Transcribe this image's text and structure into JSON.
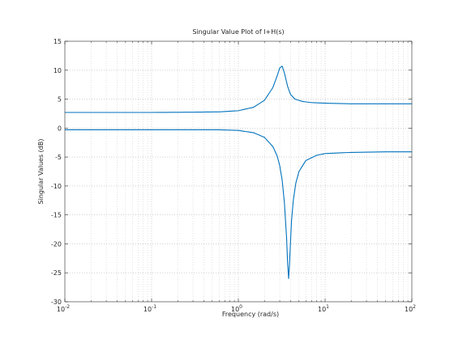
{
  "chart_data": {
    "type": "line",
    "title": "Singular Value Plot of I+H(s)",
    "xlabel": "Frequency (rad/s)",
    "ylabel": "Singular Values (dB)",
    "xscale": "log",
    "xlim": [
      0.01,
      100
    ],
    "ylim": [
      -30,
      15
    ],
    "grid": "major and minor (log x), dotted",
    "x_tick_labels": [
      {
        "base": "10",
        "exp": "-2",
        "value": 0.01
      },
      {
        "base": "10",
        "exp": "-1",
        "value": 0.1
      },
      {
        "base": "10",
        "exp": "0",
        "value": 1
      },
      {
        "base": "10",
        "exp": "1",
        "value": 10
      },
      {
        "base": "10",
        "exp": "2",
        "value": 100
      }
    ],
    "y_tick_labels": [
      "15",
      "10",
      "5",
      "0",
      "-5",
      "-10",
      "-15",
      "-20",
      "-25",
      "-30"
    ],
    "y_tick_values": [
      15,
      10,
      5,
      0,
      -5,
      -10,
      -15,
      -20,
      -25,
      -30
    ],
    "line_color": "#0072BD",
    "series": [
      {
        "x": [
          0.01,
          0.1,
          0.3,
          0.6,
          1.0,
          1.5,
          2.0,
          2.5,
          2.8,
          3.0,
          3.2,
          3.4,
          3.7,
          4.0,
          4.5,
          5.5,
          7.0,
          10,
          20,
          50,
          100
        ],
        "values": [
          2.7,
          2.7,
          2.75,
          2.8,
          3.0,
          3.6,
          4.8,
          7.0,
          9.0,
          10.4,
          10.7,
          9.5,
          7.2,
          5.8,
          5.0,
          4.6,
          4.4,
          4.3,
          4.2,
          4.2,
          4.2
        ]
      },
      {
        "x": [
          0.01,
          0.1,
          0.3,
          0.6,
          1.0,
          1.5,
          2.0,
          2.5,
          2.8,
          3.0,
          3.2,
          3.4,
          3.6,
          3.7,
          3.8,
          3.9,
          4.0,
          4.1,
          4.3,
          4.6,
          5.0,
          6.0,
          8.0,
          10,
          20,
          50,
          100
        ],
        "values": [
          -0.3,
          -0.3,
          -0.3,
          -0.3,
          -0.4,
          -0.8,
          -1.6,
          -3.2,
          -4.8,
          -6.5,
          -9.0,
          -13.0,
          -19.0,
          -23.5,
          -26.0,
          -23.0,
          -19.5,
          -16.0,
          -12.5,
          -9.5,
          -7.5,
          -5.6,
          -4.7,
          -4.4,
          -4.2,
          -4.1,
          -4.1
        ]
      }
    ]
  }
}
